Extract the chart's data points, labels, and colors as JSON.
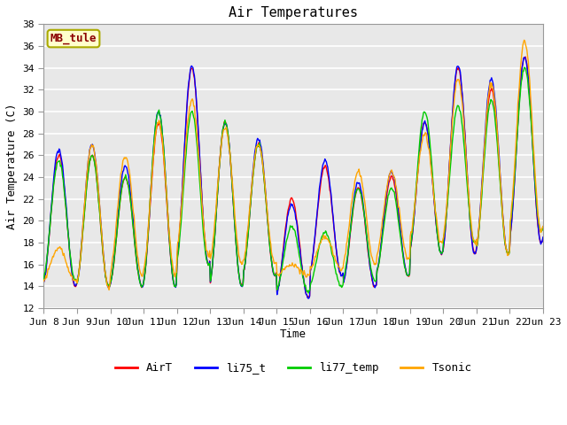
{
  "title": "Air Temperatures",
  "ylabel": "Air Temperature (C)",
  "xlabel": "Time",
  "annotation": "MB_tule",
  "ylim": [
    12,
    38
  ],
  "yticks": [
    12,
    14,
    16,
    18,
    20,
    22,
    24,
    26,
    28,
    30,
    32,
    34,
    36,
    38
  ],
  "xtick_labels": [
    "Jun 8",
    "Jun 9",
    "Jun 10",
    "Jun 11",
    "Jun 12",
    "Jun 13",
    "Jun 14",
    "Jun 15",
    "Jun 16",
    "Jun 17",
    "Jun 18",
    "Jun 19",
    "Jun 20",
    "Jun 21",
    "Jun 22",
    "Jun 23"
  ],
  "legend": [
    "AirT",
    "li75_t",
    "li77_temp",
    "Tsonic"
  ],
  "line_colors": [
    "#FF0000",
    "#0000FF",
    "#00CC00",
    "#FFA500"
  ],
  "fig_bg": "#FFFFFF",
  "plot_bg": "#E8E8E8",
  "grid_color": "#FFFFFF",
  "title_fontsize": 11,
  "axis_fontsize": 9,
  "tick_fontsize": 8,
  "legend_fontsize": 9
}
